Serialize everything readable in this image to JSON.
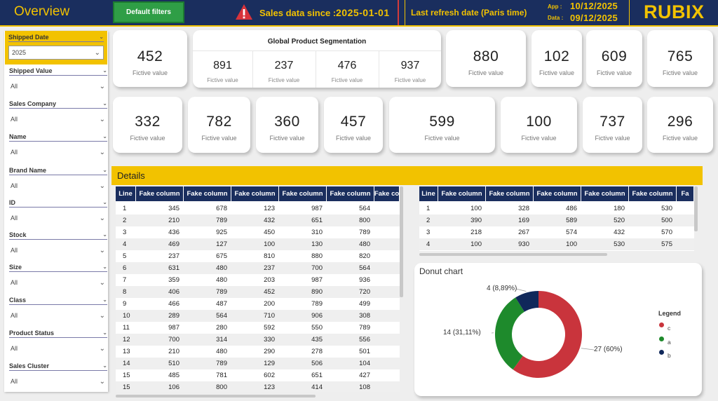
{
  "header": {
    "title": "Overview",
    "default_filters_button": "Default filters",
    "sales_since_label": "Sales data since :",
    "sales_since_date": "2025-01-01",
    "last_refresh_label": "Last refresh date (Paris time)",
    "app_label": "App :",
    "app_date": "10/12/2025",
    "data_label": "Data :",
    "data_date": "09/12/2025",
    "logo_text": "RUBIX"
  },
  "slicers": [
    {
      "label": "Shipped Date",
      "value": "2025"
    },
    {
      "label": "Shipped Value",
      "value": "All"
    },
    {
      "label": "Sales Company",
      "value": "All"
    },
    {
      "label": "Name",
      "value": "All"
    },
    {
      "label": "Brand Name",
      "value": "All"
    },
    {
      "label": "ID",
      "value": "All"
    },
    {
      "label": "Stock",
      "value": "All"
    },
    {
      "label": "Size",
      "value": "All"
    },
    {
      "label": "Class",
      "value": "All"
    },
    {
      "label": "Product Status",
      "value": "All"
    },
    {
      "label": "Sales Cluster",
      "value": "All"
    }
  ],
  "kpi_row1": [
    {
      "value": "452",
      "label": "Fictive value"
    },
    {
      "value": "880",
      "label": "Fictive value"
    },
    {
      "value": "102",
      "label": "Fictive value"
    },
    {
      "value": "609",
      "label": "Fictive value"
    },
    {
      "value": "765",
      "label": "Fictive value"
    }
  ],
  "segmentation": {
    "title": "Global Product Segmentation",
    "items": [
      {
        "value": "891",
        "label": "Fictive value"
      },
      {
        "value": "237",
        "label": "Fictive value"
      },
      {
        "value": "476",
        "label": "Fictive value"
      },
      {
        "value": "937",
        "label": "Fictive value"
      }
    ]
  },
  "kpi_row2": [
    {
      "value": "332",
      "label": "Fictive value"
    },
    {
      "value": "782",
      "label": "Fictive value"
    },
    {
      "value": "360",
      "label": "Fictive value"
    },
    {
      "value": "457",
      "label": "Fictive value"
    },
    {
      "value": "599",
      "label": "Fictive value"
    },
    {
      "value": "100",
      "label": "Fictive value"
    },
    {
      "value": "737",
      "label": "Fictive value"
    },
    {
      "value": "296",
      "label": "Fictive value"
    }
  ],
  "details_title": "Details",
  "table_left": {
    "headers": [
      "Line",
      "Fake column",
      "Fake column",
      "Fake column",
      "Fake column",
      "Fake column",
      "Fake co"
    ],
    "rows": [
      [
        "1",
        "345",
        "678",
        "123",
        "987",
        "564",
        ""
      ],
      [
        "2",
        "210",
        "789",
        "432",
        "651",
        "800",
        ""
      ],
      [
        "3",
        "436",
        "925",
        "450",
        "310",
        "789",
        ""
      ],
      [
        "4",
        "469",
        "127",
        "100",
        "130",
        "480",
        ""
      ],
      [
        "5",
        "237",
        "675",
        "810",
        "880",
        "820",
        ""
      ],
      [
        "6",
        "631",
        "480",
        "237",
        "700",
        "564",
        ""
      ],
      [
        "7",
        "359",
        "480",
        "203",
        "987",
        "936",
        ""
      ],
      [
        "8",
        "406",
        "789",
        "452",
        "890",
        "720",
        ""
      ],
      [
        "9",
        "466",
        "487",
        "200",
        "789",
        "499",
        ""
      ],
      [
        "10",
        "289",
        "564",
        "710",
        "906",
        "308",
        ""
      ],
      [
        "11",
        "987",
        "280",
        "592",
        "550",
        "789",
        ""
      ],
      [
        "12",
        "700",
        "314",
        "330",
        "435",
        "556",
        ""
      ],
      [
        "13",
        "210",
        "480",
        "290",
        "278",
        "501",
        ""
      ],
      [
        "14",
        "510",
        "789",
        "129",
        "506",
        "104",
        ""
      ],
      [
        "15",
        "485",
        "781",
        "602",
        "651",
        "427",
        ""
      ],
      [
        "15",
        "106",
        "800",
        "123",
        "414",
        "108",
        ""
      ]
    ]
  },
  "table_right": {
    "headers": [
      "Line",
      "Fake column",
      "Fake column",
      "Fake column",
      "Fake column",
      "Fake column",
      "Fa"
    ],
    "rows": [
      [
        "1",
        "100",
        "328",
        "486",
        "180",
        "530",
        ""
      ],
      [
        "2",
        "390",
        "169",
        "589",
        "520",
        "500",
        ""
      ],
      [
        "3",
        "218",
        "267",
        "574",
        "432",
        "570",
        ""
      ],
      [
        "4",
        "100",
        "930",
        "100",
        "530",
        "575",
        ""
      ]
    ]
  },
  "colors": {
    "navy": "#1a2e5e",
    "yellow": "#f2c200",
    "green": "#2f9e46",
    "donut_c": "#c9343c",
    "donut_a": "#1e8a2c",
    "donut_b": "#10285a"
  },
  "chart_data": {
    "type": "pie",
    "title": "Donut chart",
    "legend_title": "Legend",
    "categories": [
      "c",
      "a",
      "b"
    ],
    "values": [
      27,
      14,
      4
    ],
    "data_labels": [
      "27 (60%)",
      "14 (31,11%)",
      "4 (8,89%)"
    ],
    "legend_position": "right"
  }
}
